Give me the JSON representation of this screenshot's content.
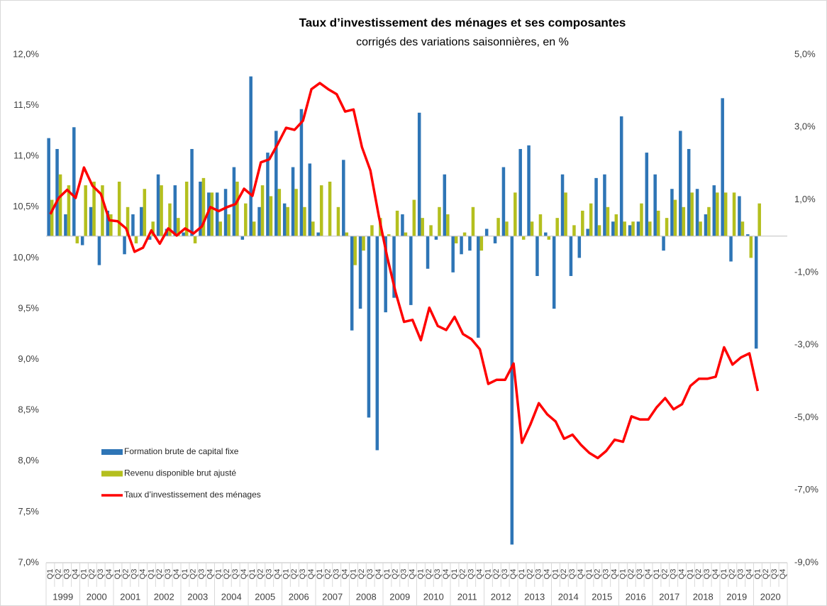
{
  "chart_data": {
    "type": "bar_line",
    "title": "Taux d’investissement des ménages et ses composantes",
    "subtitle": "corrigés des variations saisonnières, en %",
    "categories": [
      "Q1",
      "Q2",
      "Q3",
      "Q4",
      "Q1",
      "Q2",
      "Q3",
      "Q4",
      "Q1",
      "Q2",
      "Q3",
      "Q4",
      "Q1",
      "Q2",
      "Q3",
      "Q4",
      "Q1",
      "Q2",
      "Q3",
      "Q4",
      "Q1",
      "Q2",
      "Q3",
      "Q4",
      "Q1",
      "Q2",
      "Q3",
      "Q4",
      "Q1",
      "Q2",
      "Q3",
      "Q4",
      "Q1",
      "Q2",
      "Q3",
      "Q4",
      "Q1",
      "Q2",
      "Q3",
      "Q4",
      "Q1",
      "Q2",
      "Q3",
      "Q4",
      "Q1",
      "Q2",
      "Q3",
      "Q4",
      "Q1",
      "Q2",
      "Q3",
      "Q4",
      "Q1",
      "Q2",
      "Q3",
      "Q4",
      "Q1",
      "Q2",
      "Q3",
      "Q4",
      "Q1",
      "Q2",
      "Q3",
      "Q4",
      "Q1",
      "Q2",
      "Q3",
      "Q4",
      "Q1",
      "Q2",
      "Q3",
      "Q4",
      "Q1",
      "Q2",
      "Q3",
      "Q4",
      "Q1",
      "Q2",
      "Q3",
      "Q4",
      "Q1",
      "Q2",
      "Q3",
      "Q4",
      "Q1",
      "Q2",
      "Q3",
      "Q4"
    ],
    "years": [
      "1999",
      "2000",
      "2001",
      "2002",
      "2003",
      "2004",
      "2005",
      "2006",
      "2007",
      "2008",
      "2009",
      "2010",
      "2011",
      "2012",
      "2013",
      "2014",
      "2015",
      "2016",
      "2017",
      "2018",
      "2019",
      "2020"
    ],
    "ylim": [
      7,
      12
    ],
    "yticks": [
      {
        "value": 7,
        "label": "7,0%"
      },
      {
        "value": 7.5,
        "label": "7,5%"
      },
      {
        "value": 8,
        "label": "8,0%"
      },
      {
        "value": 8.5,
        "label": "8,5%"
      },
      {
        "value": 9,
        "label": "9,0%"
      },
      {
        "value": 9.5,
        "label": "9,5%"
      },
      {
        "value": 10,
        "label": "10,0%"
      },
      {
        "value": 10.5,
        "label": "10,5%"
      },
      {
        "value": 11,
        "label": "11,0%"
      },
      {
        "value": 11.5,
        "label": "11,5%"
      },
      {
        "value": 12,
        "label": "12,0%"
      }
    ],
    "y2lim": [
      -9,
      5
    ],
    "y2ticks": [
      {
        "value": -9,
        "label": "-9,0%"
      },
      {
        "value": -7,
        "label": "-7,0%"
      },
      {
        "value": -5,
        "label": "-5,0%"
      },
      {
        "value": -3,
        "label": "-3,0%"
      },
      {
        "value": -1,
        "label": "-1,0%"
      },
      {
        "value": 1,
        "label": "1,0%"
      },
      {
        "value": 3,
        "label": "3,0%"
      },
      {
        "value": 5,
        "label": "5,0%"
      }
    ],
    "series": [
      {
        "name": "Formation brute de capital fixe",
        "type": "bar",
        "axis": "y2",
        "color": "#2e75b6",
        "values": [
          2.7,
          2.4,
          0.6,
          3.0,
          -0.25,
          0.8,
          -0.8,
          0.7,
          0.0,
          -0.5,
          0.6,
          0.8,
          -0.1,
          1.7,
          0.2,
          1.4,
          0.1,
          2.4,
          1.5,
          1.2,
          1.2,
          1.3,
          1.9,
          -0.1,
          4.4,
          0.8,
          2.3,
          2.9,
          0.9,
          1.9,
          3.5,
          2.0,
          0.1,
          0.0,
          0.0,
          2.1,
          -2.6,
          -2.0,
          -5.0,
          -5.9,
          -2.1,
          -1.7,
          0.6,
          -1.9,
          3.4,
          -0.9,
          -0.1,
          1.7,
          -1.0,
          -0.5,
          -0.4,
          -2.8,
          0.2,
          -0.2,
          1.9,
          -8.5,
          2.4,
          2.5,
          -1.1,
          0.1,
          -2.0,
          1.7,
          -1.1,
          -0.6,
          0.2,
          1.6,
          1.7,
          0.4,
          3.3,
          0.3,
          0.4,
          2.3,
          1.7,
          -0.4,
          1.3,
          2.9,
          2.4,
          1.3,
          0.6,
          1.4,
          3.8,
          -0.7,
          1.1,
          0.05,
          -3.1,
          null,
          null,
          null
        ]
      },
      {
        "name": "Revenu disponible brut ajusté",
        "type": "bar",
        "axis": "y2",
        "color": "#b4bf1e",
        "values": [
          1.0,
          1.7,
          1.4,
          -0.2,
          1.4,
          1.5,
          1.4,
          0.6,
          1.5,
          0.8,
          -0.2,
          1.3,
          0.4,
          1.4,
          0.9,
          0.5,
          1.5,
          -0.2,
          1.6,
          1.2,
          0.4,
          0.6,
          1.5,
          0.9,
          0.4,
          1.4,
          1.1,
          1.3,
          0.8,
          1.3,
          0.8,
          0.4,
          1.4,
          1.5,
          0.8,
          0.1,
          -0.8,
          -0.4,
          0.3,
          0.5,
          0.05,
          0.7,
          0.1,
          1.0,
          0.5,
          0.3,
          0.8,
          0.6,
          -0.2,
          0.1,
          0.8,
          -0.4,
          0.0,
          0.5,
          0.4,
          1.2,
          -0.1,
          0.4,
          0.6,
          -0.1,
          0.5,
          1.2,
          0.3,
          0.7,
          0.9,
          0.3,
          0.8,
          0.6,
          0.4,
          0.4,
          0.9,
          0.4,
          0.7,
          0.5,
          1.0,
          0.8,
          1.2,
          0.4,
          0.8,
          1.2,
          1.2,
          1.2,
          0.4,
          -0.6,
          0.9,
          null,
          null,
          null
        ]
      },
      {
        "name": "Taux d’investissement des ménages",
        "type": "line",
        "axis": "y",
        "color": "#ff0000",
        "values": [
          10.43,
          10.59,
          10.67,
          10.59,
          10.89,
          10.71,
          10.63,
          10.37,
          10.36,
          10.29,
          10.06,
          10.1,
          10.27,
          10.14,
          10.29,
          10.22,
          10.29,
          10.24,
          10.31,
          10.5,
          10.46,
          10.5,
          10.53,
          10.68,
          10.61,
          10.94,
          10.97,
          11.12,
          11.28,
          11.26,
          11.35,
          11.66,
          11.72,
          11.66,
          11.61,
          11.44,
          11.46,
          11.09,
          10.86,
          10.41,
          10.01,
          9.66,
          9.37,
          9.39,
          9.19,
          9.51,
          9.33,
          9.29,
          9.42,
          9.25,
          9.2,
          9.1,
          8.76,
          8.8,
          8.8,
          8.96,
          8.18,
          8.36,
          8.57,
          8.46,
          8.39,
          8.22,
          8.26,
          8.16,
          8.08,
          8.03,
          8.1,
          8.21,
          8.19,
          8.44,
          8.41,
          8.41,
          8.53,
          8.62,
          8.51,
          8.56,
          8.74,
          8.81,
          8.81,
          8.83,
          9.12,
          8.95,
          9.02,
          9.06,
          8.69,
          null,
          null,
          null
        ]
      }
    ]
  }
}
